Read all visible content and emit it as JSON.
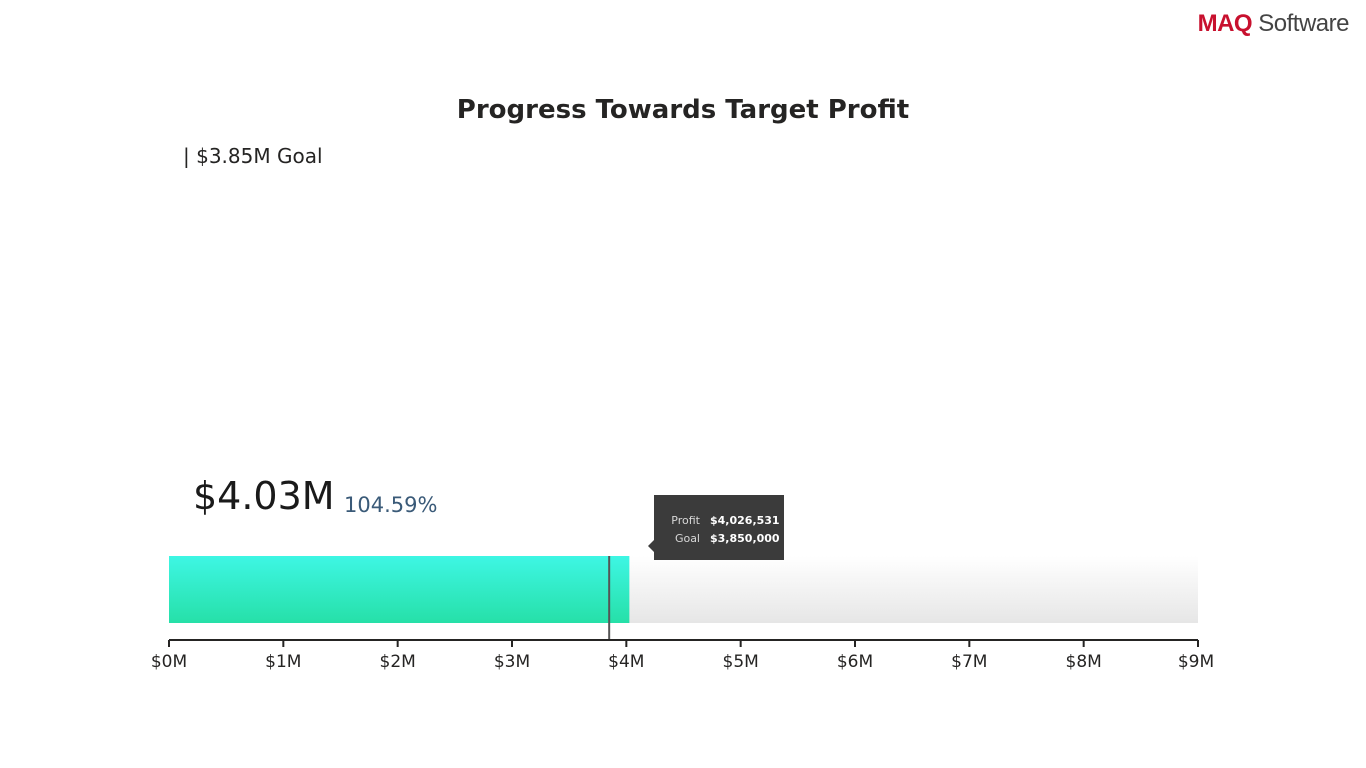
{
  "brand": {
    "prefix": "MAQ",
    "suffix": " Software"
  },
  "chart_data": {
    "type": "bar",
    "title": "Progress Towards Target Profit",
    "goal_label": "| $3.85M Goal",
    "value_display": "$4.03M",
    "percent_display": "104.59%",
    "value": 4026531,
    "goal": 3850000,
    "xlim": [
      0,
      9000000
    ],
    "ticks": [
      {
        "value": 0,
        "label": "$0M"
      },
      {
        "value": 1000000,
        "label": "$1M"
      },
      {
        "value": 2000000,
        "label": "$2M"
      },
      {
        "value": 3000000,
        "label": "$3M"
      },
      {
        "value": 4000000,
        "label": "$4M"
      },
      {
        "value": 5000000,
        "label": "$5M"
      },
      {
        "value": 6000000,
        "label": "$6M"
      },
      {
        "value": 7000000,
        "label": "$7M"
      },
      {
        "value": 8000000,
        "label": "$8M"
      },
      {
        "value": 9000000,
        "label": "$9M"
      }
    ],
    "colors": {
      "bar_top": "#3ef6e4",
      "bar_bottom": "#26e0a8",
      "track": "#e6e6e6",
      "goal_marker": "#555555"
    },
    "tooltip": [
      {
        "key": "Profit",
        "value": "$4,026,531"
      },
      {
        "key": "Goal",
        "value": "$3,850,000"
      }
    ]
  }
}
